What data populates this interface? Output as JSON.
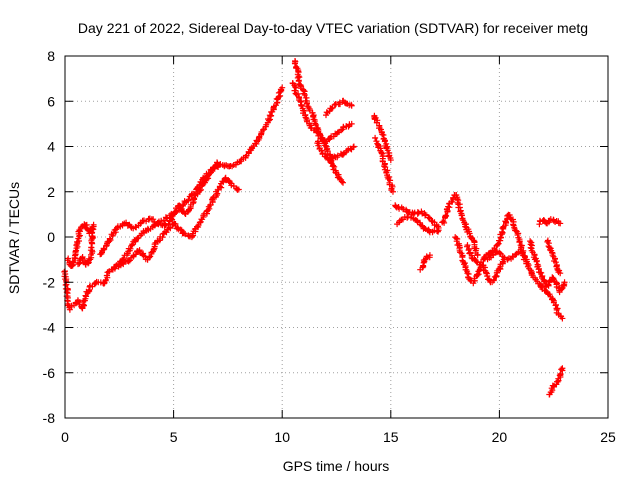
{
  "chart_data": {
    "type": "scatter",
    "title": "Day 221 of 2022, Sidereal Day-to-day VTEC variation (SDTVAR) for receiver metg",
    "xlabel": "GPS time / hours",
    "ylabel": "SDTVAR / TECUs",
    "xlim": [
      0,
      25
    ],
    "ylim": [
      -8,
      8
    ],
    "xticks": [
      0,
      5,
      10,
      15,
      20,
      25
    ],
    "yticks": [
      -8,
      -6,
      -4,
      -2,
      0,
      2,
      4,
      6,
      8
    ],
    "grid": true,
    "marker": "+",
    "series": [
      {
        "name": "SDTVAR",
        "color": "#ff0000",
        "tracks": [
          [
            [
              0.0,
              -1.5
            ],
            [
              0.1,
              -2.5
            ],
            [
              0.2,
              -3.2
            ],
            [
              0.4,
              -3.0
            ],
            [
              0.6,
              -2.8
            ],
            [
              0.8,
              -3.2
            ],
            [
              1.0,
              -2.5
            ],
            [
              1.2,
              -2.2
            ],
            [
              1.5,
              -2.0
            ],
            [
              1.8,
              -2.1
            ],
            [
              2.0,
              -1.6
            ],
            [
              2.4,
              -1.2
            ],
            [
              2.8,
              -0.8
            ],
            [
              3.2,
              -0.2
            ],
            [
              3.6,
              0.2
            ],
            [
              4.0,
              0.4
            ],
            [
              4.4,
              0.7
            ],
            [
              4.8,
              0.9
            ],
            [
              5.2,
              1.2
            ],
            [
              5.6,
              1.6
            ],
            [
              6.0,
              2.0
            ],
            [
              6.4,
              2.6
            ],
            [
              6.8,
              3.0
            ],
            [
              7.2,
              3.2
            ],
            [
              7.6,
              3.1
            ],
            [
              8.0,
              3.3
            ],
            [
              8.4,
              3.6
            ],
            [
              8.8,
              4.2
            ],
            [
              9.2,
              4.8
            ],
            [
              9.6,
              5.6
            ],
            [
              9.9,
              6.4
            ],
            [
              10.0,
              6.6
            ]
          ],
          [
            [
              0.1,
              -1.0
            ],
            [
              0.3,
              -1.3
            ],
            [
              0.5,
              -0.8
            ],
            [
              0.7,
              0.4
            ],
            [
              0.9,
              0.6
            ],
            [
              1.1,
              0.2
            ],
            [
              1.3,
              0.5
            ],
            [
              1.2,
              -0.9
            ],
            [
              1.0,
              -1.2
            ],
            [
              0.8,
              -0.9
            ],
            [
              0.6,
              -1.2
            ]
          ],
          [
            [
              1.6,
              -0.8
            ],
            [
              2.0,
              -0.2
            ],
            [
              2.4,
              0.4
            ],
            [
              2.8,
              0.6
            ],
            [
              3.2,
              0.4
            ],
            [
              3.6,
              0.7
            ],
            [
              4.0,
              0.8
            ],
            [
              4.4,
              0.5
            ],
            [
              4.8,
              0.6
            ],
            [
              5.2,
              1.4
            ],
            [
              5.6,
              1.0
            ],
            [
              6.0,
              1.8
            ],
            [
              6.4,
              2.4
            ],
            [
              6.8,
              3.0
            ],
            [
              7.0,
              3.3
            ]
          ],
          [
            [
              2.2,
              -1.4
            ],
            [
              2.6,
              -1.2
            ],
            [
              3.0,
              -1.0
            ],
            [
              3.4,
              -0.6
            ],
            [
              3.8,
              -1.0
            ],
            [
              4.2,
              -0.3
            ],
            [
              4.6,
              0.2
            ],
            [
              5.0,
              0.6
            ],
            [
              5.4,
              0.2
            ],
            [
              5.8,
              0.0
            ],
            [
              6.2,
              0.6
            ],
            [
              6.6,
              1.2
            ],
            [
              7.0,
              2.0
            ],
            [
              7.4,
              2.6
            ],
            [
              7.8,
              2.2
            ],
            [
              8.0,
              2.1
            ]
          ],
          [
            [
              10.6,
              7.8
            ],
            [
              10.7,
              7.3
            ],
            [
              10.8,
              6.8
            ],
            [
              11.0,
              6.4
            ],
            [
              11.2,
              5.8
            ],
            [
              11.4,
              5.4
            ],
            [
              11.6,
              4.8
            ],
            [
              11.8,
              4.4
            ],
            [
              12.0,
              4.0
            ],
            [
              12.2,
              3.6
            ],
            [
              12.4,
              3.0
            ],
            [
              12.6,
              2.6
            ],
            [
              12.8,
              2.4
            ]
          ],
          [
            [
              10.5,
              6.8
            ],
            [
              10.8,
              6.0
            ],
            [
              11.2,
              5.0
            ],
            [
              11.6,
              4.6
            ],
            [
              12.0,
              4.2
            ],
            [
              12.4,
              4.5
            ],
            [
              12.8,
              4.8
            ],
            [
              13.2,
              5.0
            ]
          ],
          [
            [
              11.6,
              4.2
            ],
            [
              11.8,
              3.8
            ],
            [
              12.2,
              3.4
            ],
            [
              12.6,
              3.6
            ],
            [
              13.0,
              3.8
            ],
            [
              13.3,
              4.0
            ]
          ],
          [
            [
              12.0,
              5.4
            ],
            [
              12.4,
              5.8
            ],
            [
              12.8,
              6.0
            ],
            [
              13.2,
              5.8
            ]
          ],
          [
            [
              14.2,
              5.4
            ],
            [
              14.4,
              5.0
            ],
            [
              14.6,
              4.6
            ],
            [
              14.8,
              4.0
            ],
            [
              15.0,
              3.4
            ]
          ],
          [
            [
              14.3,
              4.4
            ],
            [
              14.6,
              3.6
            ],
            [
              14.9,
              2.6
            ],
            [
              15.1,
              2.0
            ]
          ],
          [
            [
              15.2,
              1.4
            ],
            [
              15.6,
              1.2
            ],
            [
              16.0,
              1.0
            ],
            [
              16.4,
              1.1
            ],
            [
              16.8,
              0.8
            ],
            [
              17.2,
              0.4
            ]
          ],
          [
            [
              15.3,
              0.6
            ],
            [
              15.7,
              0.9
            ],
            [
              16.1,
              0.8
            ],
            [
              16.5,
              0.4
            ],
            [
              16.9,
              0.2
            ],
            [
              17.2,
              0.3
            ]
          ],
          [
            [
              16.4,
              -1.4
            ],
            [
              16.6,
              -1.0
            ],
            [
              16.8,
              -0.8
            ]
          ],
          [
            [
              17.4,
              0.6
            ],
            [
              17.6,
              1.2
            ],
            [
              17.8,
              1.6
            ],
            [
              18.0,
              1.9
            ],
            [
              18.2,
              1.2
            ],
            [
              18.4,
              0.6
            ],
            [
              18.6,
              0.2
            ],
            [
              18.8,
              -0.2
            ],
            [
              19.0,
              -0.8
            ]
          ],
          [
            [
              18.0,
              0.0
            ],
            [
              18.2,
              -0.6
            ],
            [
              18.4,
              -1.2
            ],
            [
              18.6,
              -1.8
            ],
            [
              18.8,
              -2.0
            ],
            [
              19.0,
              -1.6
            ],
            [
              19.2,
              -1.2
            ],
            [
              19.4,
              -1.6
            ],
            [
              19.6,
              -2.0
            ],
            [
              19.8,
              -1.8
            ],
            [
              20.0,
              -1.4
            ],
            [
              20.2,
              -1.0
            ]
          ],
          [
            [
              18.5,
              -0.4
            ],
            [
              18.8,
              -1.0
            ],
            [
              19.1,
              -1.2
            ],
            [
              19.4,
              -0.8
            ],
            [
              19.7,
              -0.6
            ],
            [
              20.0,
              -0.2
            ],
            [
              20.2,
              0.4
            ],
            [
              20.4,
              1.0
            ],
            [
              20.6,
              0.8
            ],
            [
              20.8,
              0.2
            ],
            [
              21.0,
              -0.4
            ],
            [
              21.2,
              -1.0
            ]
          ],
          [
            [
              19.5,
              -1.0
            ],
            [
              19.8,
              -0.6
            ],
            [
              20.1,
              -0.8
            ],
            [
              20.4,
              -1.0
            ],
            [
              20.7,
              -0.8
            ],
            [
              21.0,
              -0.6
            ],
            [
              21.3,
              -1.2
            ],
            [
              21.6,
              -1.8
            ],
            [
              21.9,
              -2.2
            ],
            [
              22.2,
              -2.4
            ],
            [
              22.5,
              -2.8
            ],
            [
              22.7,
              -3.4
            ],
            [
              22.9,
              -3.6
            ]
          ],
          [
            [
              21.4,
              -0.2
            ],
            [
              21.6,
              -0.8
            ],
            [
              21.8,
              -1.4
            ],
            [
              22.0,
              -1.8
            ],
            [
              22.2,
              -2.2
            ],
            [
              22.4,
              -1.8
            ],
            [
              22.6,
              -2.0
            ],
            [
              22.8,
              -2.4
            ],
            [
              23.0,
              -2.0
            ]
          ],
          [
            [
              21.8,
              0.6
            ],
            [
              22.0,
              0.8
            ],
            [
              22.2,
              0.6
            ],
            [
              22.4,
              0.8
            ],
            [
              22.6,
              0.7
            ],
            [
              22.8,
              0.6
            ]
          ],
          [
            [
              22.2,
              -0.2
            ],
            [
              22.4,
              -0.6
            ],
            [
              22.6,
              -1.2
            ],
            [
              22.8,
              -1.6
            ]
          ],
          [
            [
              22.3,
              -7.0
            ],
            [
              22.5,
              -6.6
            ],
            [
              22.7,
              -6.4
            ],
            [
              22.9,
              -5.8
            ]
          ]
        ]
      }
    ]
  }
}
